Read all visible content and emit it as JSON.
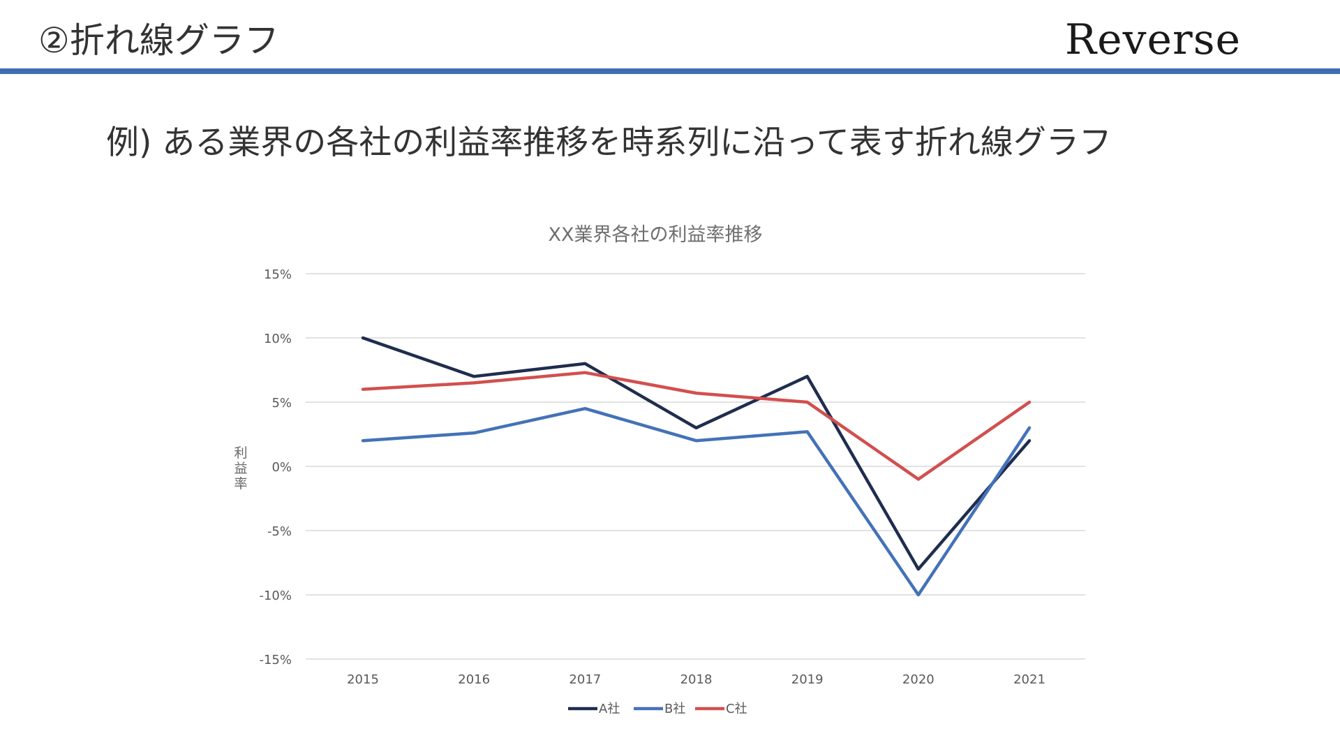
{
  "slide": {
    "title": "②折れ線グラフ",
    "brand": "Reverse",
    "subtitle": "例) ある業界の各社の利益率推移を時系列に沿って表す折れ線グラフ",
    "accent_color": "#3d6eb4"
  },
  "chart_data": {
    "type": "line",
    "title": "XX業界各社の利益率推移",
    "xlabel": "",
    "ylabel": "利益率",
    "categories": [
      "2015",
      "2016",
      "2017",
      "2018",
      "2019",
      "2020",
      "2021"
    ],
    "ylim": [
      -15,
      15
    ],
    "yticks": [
      15,
      10,
      5,
      0,
      -5,
      -10,
      -15
    ],
    "ytick_labels": [
      "15%",
      "10%",
      "5%",
      "0%",
      "-5%",
      "-10%",
      "-15%"
    ],
    "grid": true,
    "legend_position": "bottom",
    "series": [
      {
        "name": "A社",
        "color": "#1f2d4e",
        "values": [
          10,
          7,
          8,
          3,
          7,
          -8,
          2
        ]
      },
      {
        "name": "B社",
        "color": "#4472b8",
        "values": [
          2,
          2.6,
          4.5,
          2,
          2.7,
          -10,
          3
        ]
      },
      {
        "name": "C社",
        "color": "#d24f4f",
        "values": [
          6,
          6.5,
          7.3,
          5.7,
          5,
          -1,
          5
        ]
      }
    ]
  }
}
